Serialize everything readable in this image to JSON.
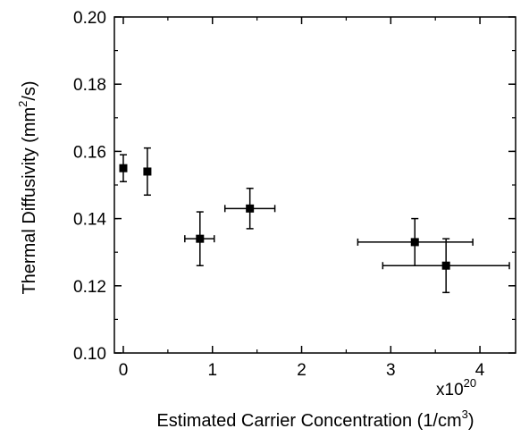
{
  "chart_data": {
    "type": "scatter",
    "xlabel": {
      "text": "Estimated Carrier Concentration (1/cm",
      "superscript": "3",
      "closing": ")"
    },
    "ylabel": {
      "text": "Thermal Diffusivity (mm",
      "superscript": "2",
      "closing": "/s)"
    },
    "x_multiplier": {
      "base": "x10",
      "exponent": "20"
    },
    "xlim": [
      -0.1,
      4.4
    ],
    "ylim": [
      0.1,
      0.2
    ],
    "x_ticks": [
      {
        "value": 0,
        "label": "0"
      },
      {
        "value": 1,
        "label": "1"
      },
      {
        "value": 2,
        "label": "2"
      },
      {
        "value": 3,
        "label": "3"
      },
      {
        "value": 4,
        "label": "4"
      }
    ],
    "y_ticks": [
      {
        "value": 0.1,
        "label": "0.10"
      },
      {
        "value": 0.12,
        "label": "0.12"
      },
      {
        "value": 0.14,
        "label": "0.14"
      },
      {
        "value": 0.16,
        "label": "0.16"
      },
      {
        "value": 0.18,
        "label": "0.18"
      },
      {
        "value": 0.2,
        "label": "0.20"
      }
    ],
    "x_minor_step": 0.5,
    "y_minor_step": 0.01,
    "grid": false,
    "marker": "filled-square",
    "marker_color": "#000000",
    "points": [
      {
        "x": 0.0,
        "y": 0.155,
        "y_err_low": 0.151,
        "y_err_high": 0.159
      },
      {
        "x": 0.27,
        "y": 0.154,
        "y_err_low": 0.147,
        "y_err_high": 0.161
      },
      {
        "x": 0.86,
        "y": 0.134,
        "x_err_low": 0.69,
        "x_err_high": 1.02,
        "y_err_low": 0.126,
        "y_err_high": 0.142
      },
      {
        "x": 1.42,
        "y": 0.143,
        "x_err_low": 1.14,
        "x_err_high": 1.7,
        "y_err_low": 0.137,
        "y_err_high": 0.149
      },
      {
        "x": 3.27,
        "y": 0.133,
        "x_err_low": 2.63,
        "x_err_high": 3.92,
        "y_err_low": 0.126,
        "y_err_high": 0.14
      },
      {
        "x": 3.62,
        "y": 0.126,
        "x_err_low": 2.91,
        "x_err_high": 4.33,
        "y_err_low": 0.118,
        "y_err_high": 0.134
      }
    ]
  }
}
